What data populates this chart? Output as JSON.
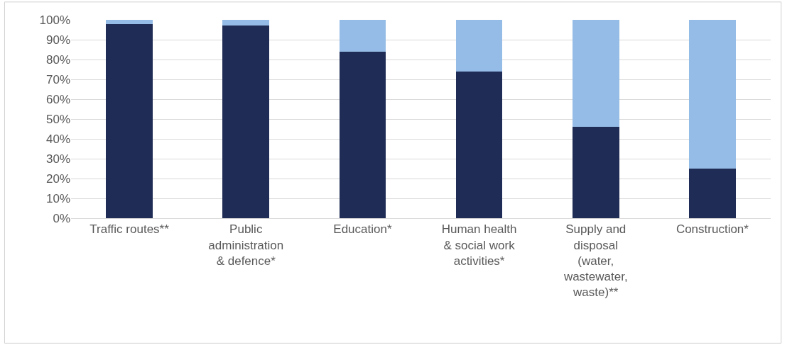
{
  "chart_data": {
    "type": "bar",
    "stacked": true,
    "categories": [
      "Traffic routes**",
      "Public\nadministration\n& defence*",
      "Education*",
      "Human health\n& social work\nactivities*",
      "Supply and\ndisposal\n(water,\nwastewater,\nwaste)**",
      "Construction*"
    ],
    "series": [
      {
        "color": "#1f2c55",
        "values": [
          98,
          97,
          84,
          74,
          46,
          25
        ]
      },
      {
        "color": "#95bce6",
        "values": [
          2,
          3,
          16,
          26,
          54,
          75
        ]
      }
    ],
    "ylim": [
      0,
      100
    ],
    "yticks": [
      {
        "value": 0,
        "label": "0%"
      },
      {
        "value": 10,
        "label": "10%"
      },
      {
        "value": 20,
        "label": "20%"
      },
      {
        "value": 30,
        "label": "30%"
      },
      {
        "value": 40,
        "label": "40%"
      },
      {
        "value": 50,
        "label": "50%"
      },
      {
        "value": 60,
        "label": "60%"
      },
      {
        "value": 70,
        "label": "70%"
      },
      {
        "value": 80,
        "label": "80%"
      },
      {
        "value": 90,
        "label": "90%"
      },
      {
        "value": 100,
        "label": "100%"
      }
    ],
    "grid": "y"
  }
}
